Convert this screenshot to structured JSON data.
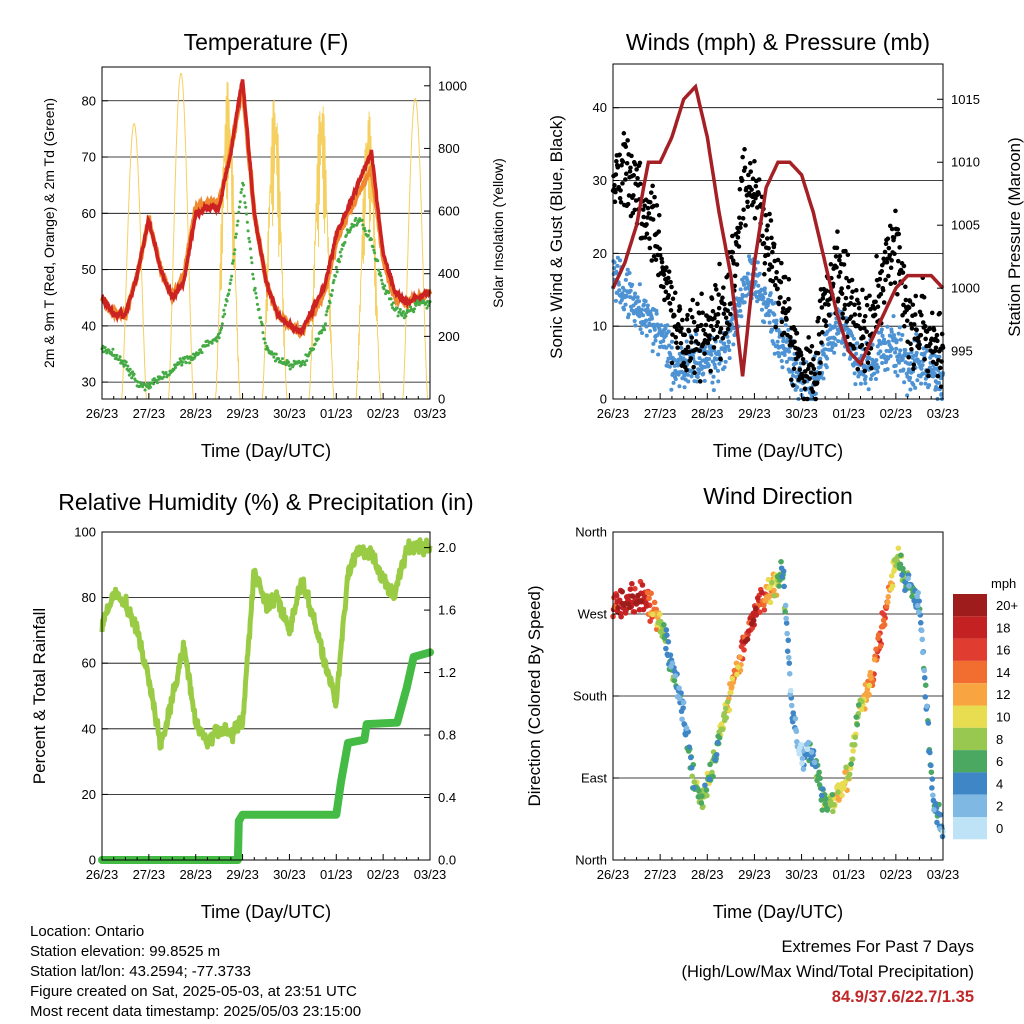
{
  "x_tick_labels": [
    "26/23",
    "27/23",
    "28/23",
    "29/23",
    "30/23",
    "01/23",
    "02/23",
    "03/23"
  ],
  "colors": {
    "temp_red": "#cc2222",
    "temp_orange": "#f08a30",
    "dewpoint_green": "#44aa44",
    "solar_yellow": "#f5d060",
    "wind_blue": "#4d93d4",
    "gust_black": "#000000",
    "pressure_maroon": "#a52025",
    "rh_green": "#99cc44",
    "rain_green": "#44bb44",
    "extremes_red": "#c0282a"
  },
  "chart_data": [
    {
      "type": "line",
      "title": "Temperature (F)",
      "xlabel": "Time (Day/UTC)",
      "ylabel": "2m & 9m T (Red, Orange) & 2m Td (Green)",
      "ylabel_right": "Solar Insolation (Yellow)",
      "ylim": [
        27,
        86
      ],
      "ylim_right": [
        0,
        1060
      ],
      "yticks": [
        30,
        40,
        50,
        60,
        70,
        80
      ],
      "yticks_right": [
        0,
        200,
        400,
        600,
        800,
        1000
      ],
      "grid": true,
      "x": [
        0,
        0.25,
        0.5,
        0.75,
        1,
        1.25,
        1.5,
        1.75,
        2,
        2.25,
        2.5,
        2.75,
        3,
        3.25,
        3.5,
        3.75,
        4,
        4.25,
        4.5,
        4.75,
        5,
        5.25,
        5.5,
        5.75,
        6,
        6.25,
        6.5,
        6.75,
        7
      ],
      "series": [
        {
          "name": "2m T",
          "values": [
            45,
            42,
            42,
            49,
            59,
            50,
            45,
            48,
            60,
            61,
            61,
            71,
            84,
            60,
            48,
            42,
            40,
            39,
            43,
            47,
            56,
            61,
            66,
            71,
            53,
            46,
            44,
            45,
            46
          ]
        },
        {
          "name": "9m T",
          "values": [
            45,
            42,
            42,
            49,
            59,
            50,
            45,
            49,
            61,
            62,
            62,
            71,
            83,
            60,
            48,
            42,
            40,
            39,
            42,
            46,
            55,
            60,
            64,
            68,
            52,
            45,
            44,
            45,
            46
          ]
        },
        {
          "name": "2m Td",
          "values": [
            36,
            35,
            33,
            30,
            29,
            31,
            32,
            34,
            35,
            37,
            38,
            48,
            66,
            47,
            36,
            34,
            33,
            33,
            36,
            40,
            50,
            57,
            59,
            55,
            47,
            43,
            42,
            44,
            44
          ]
        },
        {
          "name": "Solar Insolation",
          "axis": "right",
          "peaks": [
            880,
            1040,
            1020,
            980,
            980,
            930,
            960
          ]
        }
      ]
    },
    {
      "type": "scatter",
      "title": "Winds (mph) & Pressure (mb)",
      "xlabel": "Time (Day/UTC)",
      "ylabel": "Sonic Wind & Gust (Blue, Black)",
      "ylabel_right": "Station Pressure (Maroon)",
      "ylim": [
        0,
        46
      ],
      "ylim_right": [
        991.2,
        1017.8
      ],
      "yticks": [
        0,
        10,
        20,
        30,
        40
      ],
      "yticks_right": [
        995,
        1000,
        1005,
        1010,
        1015
      ],
      "grid": true,
      "x": [
        0,
        0.25,
        0.5,
        0.75,
        1,
        1.25,
        1.5,
        1.75,
        2,
        2.25,
        2.5,
        2.75,
        3,
        3.25,
        3.5,
        3.75,
        4,
        4.25,
        4.5,
        4.75,
        5,
        5.25,
        5.5,
        5.75,
        6,
        6.25,
        6.5,
        6.75,
        7
      ],
      "series": [
        {
          "name": "Sonic Wind",
          "values": [
            16,
            15,
            13,
            11,
            9,
            5,
            4,
            5,
            5,
            6,
            9,
            15,
            17,
            13,
            9,
            6,
            2,
            2,
            7,
            10,
            8,
            4,
            5,
            7,
            7,
            4,
            5,
            4,
            3
          ]
        },
        {
          "name": "Gust",
          "values": [
            30,
            32,
            29,
            25,
            20,
            10,
            8,
            9,
            9,
            11,
            15,
            28,
            30,
            22,
            16,
            10,
            4,
            4,
            14,
            18,
            14,
            8,
            10,
            18,
            22,
            9,
            10,
            8,
            7
          ]
        },
        {
          "name": "Station Pressure",
          "axis": "right",
          "values": [
            1000,
            1002,
            1005,
            1010,
            1010,
            1012,
            1015,
            1016,
            1012,
            1006,
            1001,
            993,
            1002,
            1008,
            1010,
            1010,
            1009,
            1006,
            1002,
            998,
            995,
            994,
            996,
            998,
            1000,
            1001,
            1001,
            1001,
            1000
          ]
        }
      ]
    },
    {
      "type": "line",
      "title": "Relative Humidity (%) & Precipitation (in)",
      "xlabel": "Time (Day/UTC)",
      "ylabel": "Percent & Total Rainfall",
      "ylim": [
        0,
        100
      ],
      "ylim_right": [
        0,
        2.1
      ],
      "yticks": [
        0,
        20,
        40,
        60,
        80,
        100
      ],
      "yticks_right": [
        0.0,
        0.4,
        0.8,
        1.2,
        1.6,
        2.0
      ],
      "grid": true,
      "x": [
        0,
        0.25,
        0.5,
        0.75,
        1,
        1.25,
        1.5,
        1.75,
        2,
        2.25,
        2.5,
        2.75,
        3,
        3.25,
        3.5,
        3.75,
        4,
        4.25,
        4.5,
        4.75,
        5,
        5.25,
        5.5,
        5.75,
        6,
        6.25,
        6.5,
        6.75,
        7
      ],
      "series": [
        {
          "name": "Relative Humidity",
          "values": [
            72,
            82,
            78,
            70,
            55,
            35,
            50,
            65,
            42,
            36,
            40,
            38,
            42,
            88,
            78,
            80,
            70,
            85,
            75,
            60,
            48,
            88,
            95,
            93,
            85,
            80,
            95,
            96,
            94
          ]
        },
        {
          "name": "Total Rainfall",
          "axis": "right",
          "steps": [
            [
              0,
              0.0
            ],
            [
              2.9,
              0.0
            ],
            [
              2.92,
              0.25
            ],
            [
              3.0,
              0.29
            ],
            [
              5.0,
              0.29
            ],
            [
              5.1,
              0.5
            ],
            [
              5.25,
              0.75
            ],
            [
              5.6,
              0.77
            ],
            [
              5.65,
              0.87
            ],
            [
              6.3,
              0.88
            ],
            [
              6.5,
              1.1
            ],
            [
              6.65,
              1.3
            ],
            [
              7,
              1.33
            ]
          ]
        }
      ]
    },
    {
      "type": "scatter",
      "title": "Wind Direction",
      "xlabel": "Time (Day/UTC)",
      "ylabel": "Direction (Colored By Speed)",
      "ytick_labels": [
        "North",
        "East",
        "South",
        "West",
        "North"
      ],
      "ylim": [
        0,
        360
      ],
      "grid": true,
      "colorbar": {
        "title": "mph",
        "labels": [
          "20+",
          "18",
          "16",
          "14",
          "12",
          "10",
          "8",
          "6",
          "4",
          "2",
          "0"
        ],
        "colors": [
          "#9e1c1c",
          "#c42222",
          "#e03c30",
          "#f26e30",
          "#f8a440",
          "#e8dc50",
          "#98c850",
          "#4aa860",
          "#3e86c6",
          "#80b8e4",
          "#bee2f6"
        ]
      }
    }
  ],
  "info": {
    "location": "Location: Ontario",
    "elevation": "Station elevation: 99.8525 m",
    "latlon": "Station lat/lon: 43.2594; -77.3733",
    "created": "Figure created on Sat, 2025-05-03, at 23:51 UTC",
    "timestamp": "Most recent data timestamp: 2025/05/03 23:15:00"
  },
  "extremes": {
    "line1": "Extremes For Past 7 Days",
    "line2": "(High/Low/Max Wind/Total Precipitation)",
    "values": "84.9/37.6/22.7/1.35"
  }
}
